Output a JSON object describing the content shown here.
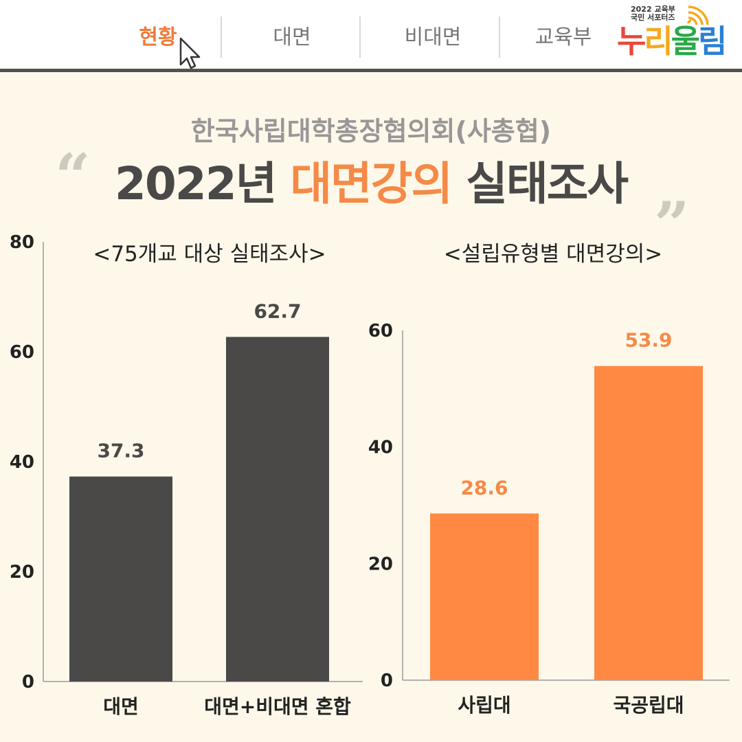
{
  "nav": {
    "tabs": [
      {
        "label": "현황",
        "active": true
      },
      {
        "label": "대면",
        "active": false
      },
      {
        "label": "비대면",
        "active": false
      },
      {
        "label": "교육부",
        "active": false
      }
    ]
  },
  "logo": {
    "small_line1": "2022 교육부",
    "small_line2": "국민 서포터즈",
    "main_chars": [
      "누",
      "리",
      "울",
      "림"
    ],
    "main_colors": [
      "#e8473a",
      "#f4a91c",
      "#2aa84a",
      "#2c7fd4"
    ]
  },
  "header": {
    "subtitle": "한국사립대학총장협의회(사총협)",
    "title_prefix": "2022년 ",
    "title_highlight": "대면강의",
    "title_suffix": " 실태조사"
  },
  "colors": {
    "background": "#fdf8ea",
    "accent": "#f58a47",
    "dark_bar": "#4a4948"
  },
  "chart_data": [
    {
      "type": "bar",
      "title": "<75개교 대상 실태조사>",
      "categories": [
        "대면",
        "대면+비대면 혼합"
      ],
      "values": [
        37.3,
        62.7
      ],
      "value_labels": [
        "37.3",
        "62.7"
      ],
      "ylim": [
        0,
        80
      ],
      "yticks": [
        "0",
        "20",
        "40",
        "60",
        "80"
      ],
      "bar_color": "#4a4948",
      "label_color": "#4a4948",
      "grid": false
    },
    {
      "type": "bar",
      "title": "<설립유형별 대면강의>",
      "categories": [
        "사립대",
        "국공립대"
      ],
      "values": [
        28.6,
        53.9
      ],
      "value_labels": [
        "28.6",
        "53.9"
      ],
      "ylim": [
        0,
        60
      ],
      "yticks": [
        "0",
        "20",
        "40",
        "60"
      ],
      "bar_color": "#ff8942",
      "label_color": "#f58a47",
      "grid": false
    }
  ]
}
